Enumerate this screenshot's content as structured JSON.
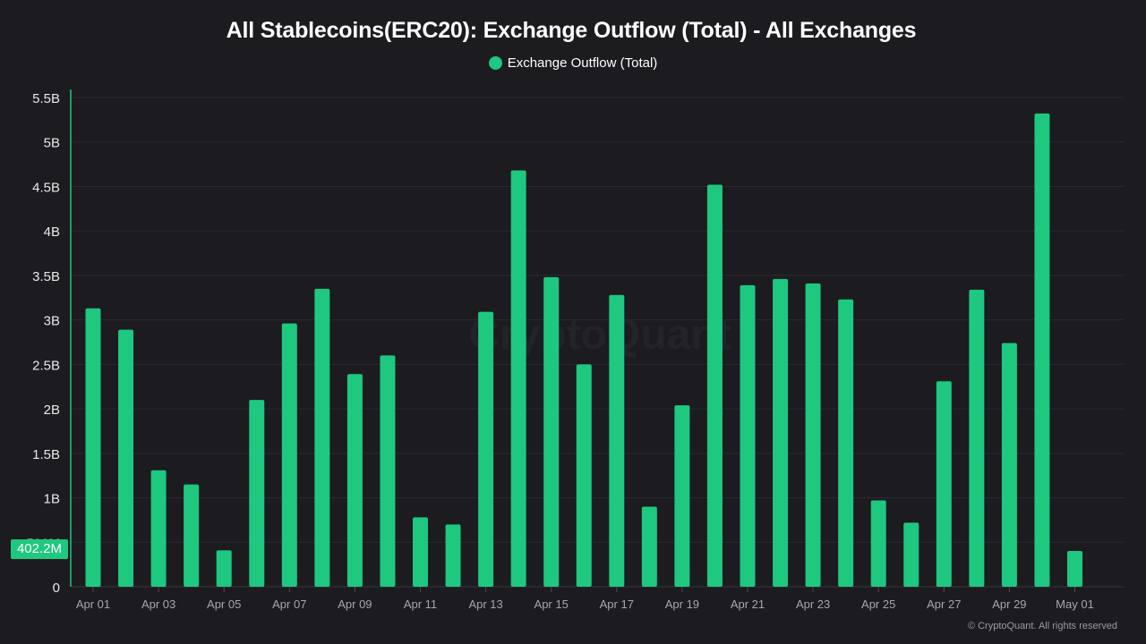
{
  "colors": {
    "bar": "#1ec87f",
    "grid": "#2a2a31",
    "axis_text": "#e8e8ea",
    "tick_text": "#a6a6ae",
    "background": "#1b1b20",
    "watermark": "#232329"
  },
  "watermark": "CryptoQuant",
  "footer": "© CryptoQuant. All rights reserved",
  "cursor_value_label": "402.2M",
  "chart_data": {
    "type": "bar",
    "title": "All Stablecoins(ERC20): Exchange Outflow (Total) - All Exchanges",
    "xlabel": "",
    "ylabel": "",
    "legend": {
      "placement": "top-center"
    },
    "grid": true,
    "categories": [
      "Apr 01",
      "Apr 02",
      "Apr 03",
      "Apr 04",
      "Apr 05",
      "Apr 06",
      "Apr 07",
      "Apr 08",
      "Apr 09",
      "Apr 10",
      "Apr 11",
      "Apr 12",
      "Apr 13",
      "Apr 14",
      "Apr 15",
      "Apr 16",
      "Apr 17",
      "Apr 18",
      "Apr 19",
      "Apr 20",
      "Apr 21",
      "Apr 22",
      "Apr 23",
      "Apr 24",
      "Apr 25",
      "Apr 26",
      "Apr 27",
      "Apr 28",
      "Apr 29",
      "Apr 30",
      "May 01"
    ],
    "x_tick_labels": [
      "Apr 01",
      "Apr 03",
      "Apr 05",
      "Apr 07",
      "Apr 09",
      "Apr 11",
      "Apr 13",
      "Apr 15",
      "Apr 17",
      "Apr 19",
      "Apr 21",
      "Apr 23",
      "Apr 25",
      "Apr 27",
      "Apr 29",
      "May 01"
    ],
    "y_tick_labels": [
      "0",
      "500M",
      "1B",
      "1.5B",
      "2B",
      "2.5B",
      "3B",
      "3.5B",
      "4B",
      "4.5B",
      "5B",
      "5.5B"
    ],
    "ylim": [
      0,
      5500000000
    ],
    "series": [
      {
        "name": "Exchange Outflow (Total)",
        "values": [
          3130000000,
          2890000000,
          1310000000,
          1150000000,
          410000000,
          2100000000,
          2960000000,
          3350000000,
          2390000000,
          2600000000,
          780000000,
          700000000,
          3090000000,
          4680000000,
          3480000000,
          2500000000,
          3280000000,
          900000000,
          2040000000,
          4520000000,
          3390000000,
          3460000000,
          3410000000,
          3230000000,
          970000000,
          720000000,
          2310000000,
          3340000000,
          2740000000,
          5320000000,
          402200000
        ]
      }
    ]
  }
}
